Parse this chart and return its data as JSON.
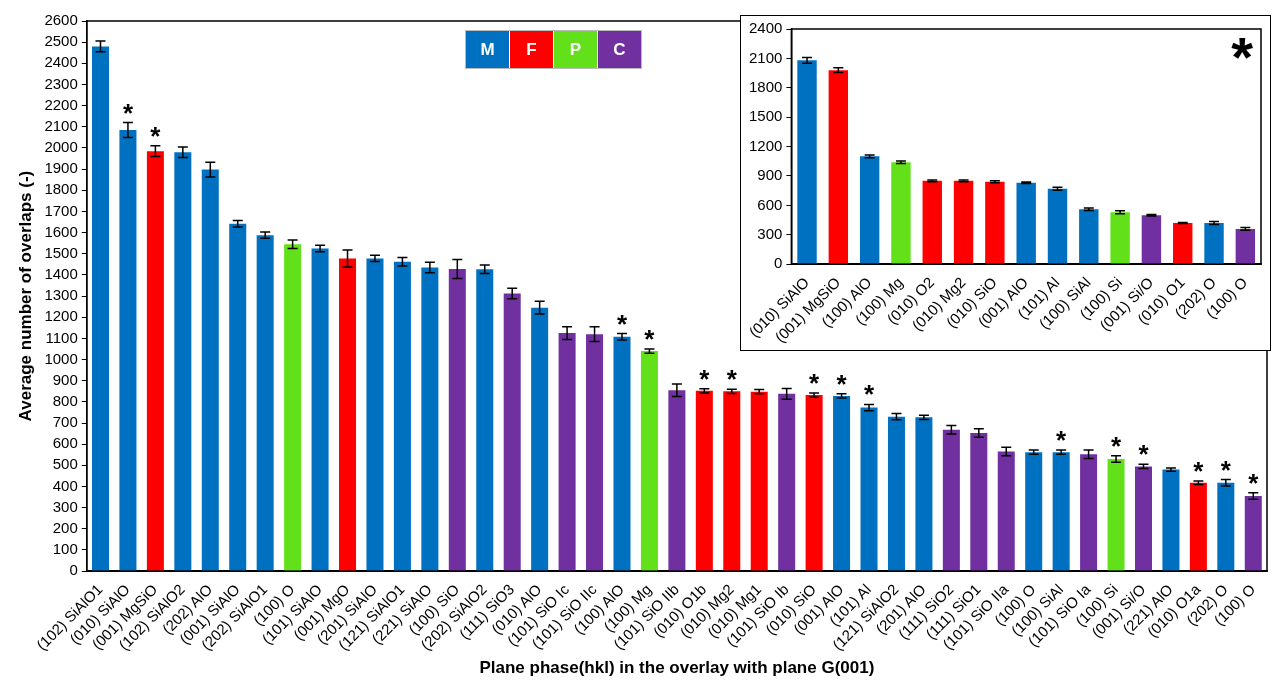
{
  "chart_data": [
    {
      "type": "bar",
      "xlabel": "Plane phase(hkl) in the overlay with plane G(001)",
      "ylabel": "Average number of overlaps (-)",
      "categories": [
        "(102) SiAlO1",
        "(010) SiAlO",
        "(001) MgSiO",
        "(102) SiAlO2",
        "(202) AlO",
        "(001) SiAlO",
        "(202) SiAlO1",
        "(100) O",
        "(101) SiAlO",
        "(001) MgO",
        "(201) SiAlO",
        "(121) SiAlO1",
        "(221) SiAlO",
        "(100) SiO",
        "(202) SiAlO2",
        "(111) SiO3",
        "(010) AlO",
        "(101) SiO Ic",
        "(101) SiO IIc",
        "(100) AlO",
        "(100) Mg",
        "(101) SiO IIb",
        "(010) O1b",
        "(010) Mg2",
        "(010) Mg1",
        "(101) SiO Ib",
        "(010) SiO",
        "(001) AlO",
        "(101) Al",
        "(121) SiAlO2",
        "(201) AlO",
        "(111) SiO2",
        "(111) SiO1",
        "(101) SiO IIa",
        "(100) O",
        "(100) SiAl",
        "(101) SiO Ia",
        "(100) Si",
        "(001) Si/O",
        "(221) AlO",
        "(010) O1a",
        "(202) O",
        "(100) O"
      ],
      "legend": "top",
      "grid": false,
      "ylim": [
        0,
        2600
      ],
      "yticks": [
        0,
        100,
        200,
        300,
        400,
        500,
        600,
        700,
        800,
        900,
        1000,
        1100,
        1200,
        1300,
        1400,
        1500,
        1600,
        1700,
        1800,
        1900,
        2000,
        2100,
        2200,
        2300,
        2400,
        2500,
        2600
      ],
      "series": [
        {
          "name": "M",
          "color": "#0070c0",
          "values": [
            2480,
            2085,
            null,
            1980,
            1898,
            1642,
            1588,
            null,
            1525,
            null,
            1478,
            1462,
            1435,
            null,
            1427,
            null,
            1245,
            null,
            null,
            1108,
            null,
            null,
            null,
            null,
            null,
            null,
            null,
            828,
            773,
            730,
            727,
            null,
            null,
            null,
            562,
            562,
            null,
            null,
            null,
            480,
            null,
            418,
            null
          ],
          "errors": [
            25,
            35,
            null,
            25,
            35,
            15,
            15,
            null,
            15,
            null,
            15,
            20,
            25,
            null,
            20,
            null,
            30,
            null,
            null,
            15,
            null,
            null,
            null,
            null,
            null,
            null,
            null,
            10,
            15,
            15,
            10,
            null,
            null,
            null,
            10,
            10,
            null,
            null,
            null,
            8,
            null,
            15,
            null
          ],
          "value_labels": [
            null,
            "*",
            null,
            null,
            null,
            null,
            null,
            null,
            null,
            null,
            null,
            null,
            null,
            null,
            null,
            null,
            null,
            null,
            null,
            "*",
            null,
            null,
            null,
            null,
            null,
            null,
            null,
            "*",
            "*",
            null,
            null,
            null,
            null,
            null,
            null,
            "*",
            null,
            null,
            null,
            null,
            null,
            "*",
            null
          ]
        },
        {
          "name": "F",
          "color": "#ff0000",
          "values": [
            null,
            null,
            1985,
            null,
            null,
            null,
            null,
            null,
            null,
            1478,
            null,
            null,
            null,
            null,
            null,
            null,
            null,
            null,
            null,
            null,
            null,
            null,
            852,
            850,
            848,
            null,
            832,
            null,
            null,
            null,
            null,
            null,
            null,
            null,
            null,
            null,
            null,
            null,
            null,
            null,
            418,
            null,
            null
          ],
          "errors": [
            null,
            null,
            25,
            null,
            null,
            null,
            null,
            null,
            null,
            40,
            null,
            null,
            null,
            null,
            null,
            null,
            null,
            null,
            null,
            null,
            null,
            null,
            10,
            10,
            10,
            null,
            10,
            null,
            null,
            null,
            null,
            null,
            null,
            null,
            null,
            null,
            null,
            null,
            null,
            null,
            8,
            null,
            null
          ],
          "value_labels": [
            null,
            null,
            "*",
            null,
            null,
            null,
            null,
            null,
            null,
            null,
            null,
            null,
            null,
            null,
            null,
            null,
            null,
            null,
            null,
            null,
            null,
            null,
            "*",
            "*",
            null,
            null,
            "*",
            null,
            null,
            null,
            null,
            null,
            null,
            null,
            null,
            null,
            null,
            null,
            null,
            null,
            "*",
            null,
            null
          ]
        },
        {
          "name": "P",
          "color": "#62e01a",
          "values": [
            null,
            null,
            null,
            null,
            null,
            null,
            null,
            1545,
            null,
            null,
            null,
            null,
            null,
            null,
            null,
            null,
            null,
            null,
            null,
            null,
            1040,
            null,
            null,
            null,
            null,
            null,
            null,
            null,
            null,
            null,
            null,
            null,
            null,
            null,
            null,
            null,
            null,
            530,
            null,
            null,
            null,
            null,
            null
          ],
          "errors": [
            null,
            null,
            null,
            null,
            null,
            null,
            null,
            20,
            null,
            null,
            null,
            null,
            null,
            null,
            null,
            null,
            null,
            null,
            null,
            null,
            10,
            null,
            null,
            null,
            null,
            null,
            null,
            null,
            null,
            null,
            null,
            null,
            null,
            null,
            null,
            null,
            null,
            15,
            null,
            null,
            null,
            null,
            null
          ],
          "value_labels": [
            null,
            null,
            null,
            null,
            null,
            null,
            null,
            null,
            null,
            null,
            null,
            null,
            null,
            null,
            null,
            null,
            null,
            null,
            null,
            null,
            "*",
            null,
            null,
            null,
            null,
            null,
            null,
            null,
            null,
            null,
            null,
            null,
            null,
            null,
            null,
            null,
            null,
            "*",
            null,
            null,
            null,
            null,
            null
          ]
        },
        {
          "name": "C",
          "color": "#7030a0",
          "values": [
            null,
            null,
            null,
            null,
            null,
            null,
            null,
            null,
            null,
            null,
            null,
            null,
            null,
            1428,
            null,
            1312,
            null,
            1125,
            1120,
            null,
            null,
            855,
            null,
            null,
            null,
            838,
            null,
            null,
            null,
            null,
            null,
            668,
            653,
            565,
            null,
            null,
            552,
            null,
            495,
            null,
            null,
            null,
            355
          ],
          "errors": [
            null,
            null,
            null,
            null,
            null,
            null,
            null,
            null,
            null,
            null,
            null,
            null,
            null,
            45,
            null,
            25,
            null,
            30,
            35,
            null,
            null,
            30,
            null,
            null,
            null,
            25,
            null,
            null,
            null,
            null,
            null,
            20,
            20,
            20,
            null,
            null,
            20,
            null,
            10,
            null,
            null,
            null,
            15
          ],
          "value_labels": [
            null,
            null,
            null,
            null,
            null,
            null,
            null,
            null,
            null,
            null,
            null,
            null,
            null,
            null,
            null,
            null,
            null,
            null,
            null,
            null,
            null,
            null,
            null,
            null,
            null,
            null,
            null,
            null,
            null,
            null,
            null,
            null,
            null,
            null,
            null,
            null,
            null,
            null,
            "*",
            null,
            null,
            null,
            "*"
          ]
        }
      ]
    },
    {
      "type": "bar",
      "annotations": [
        "*"
      ],
      "grid": false,
      "categories": [
        "(010) SiAlO",
        "(001) MgSiO",
        "(100) AlO",
        "(100) Mg",
        "(010) O2",
        "(010) Mg2",
        "(010) SiO",
        "(001) AlO",
        "(101) Al",
        "(100) SiAl",
        "(100) Si",
        "(001) Si/O",
        "(010) O1",
        "(202) O",
        "(100) O"
      ],
      "values": [
        2080,
        1980,
        1100,
        1040,
        850,
        850,
        840,
        830,
        770,
        560,
        530,
        500,
        420,
        420,
        360
      ],
      "errors": [
        30,
        25,
        15,
        12,
        10,
        10,
        10,
        8,
        15,
        12,
        15,
        8,
        6,
        15,
        15
      ],
      "colors": [
        "#0070c0",
        "#ff0000",
        "#0070c0",
        "#62e01a",
        "#ff0000",
        "#ff0000",
        "#ff0000",
        "#0070c0",
        "#0070c0",
        "#0070c0",
        "#62e01a",
        "#7030a0",
        "#ff0000",
        "#0070c0",
        "#7030a0"
      ],
      "ylim": [
        0,
        2400
      ],
      "yticks": [
        0,
        300,
        600,
        900,
        1200,
        1500,
        1800,
        2100,
        2400
      ]
    }
  ]
}
